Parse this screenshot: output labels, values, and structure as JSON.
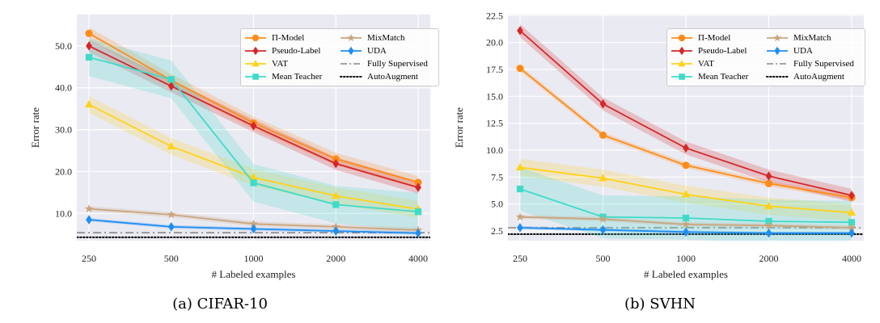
{
  "figures": [
    {
      "id": "panel-a",
      "caption": "(a) CIFAR-10",
      "chart_data": {
        "type": "line",
        "title": "",
        "xlabel": "# Labeled examples",
        "ylabel": "Error rate",
        "x_scale": "log",
        "categories": [
          "250",
          "500",
          "1000",
          "2000",
          "4000"
        ],
        "x": [
          250,
          500,
          1000,
          2000,
          4000
        ],
        "ylim": [
          3.5,
          57.5
        ],
        "yticks": [
          10.0,
          20.0,
          30.0,
          40.0,
          50.0
        ],
        "ytick_labels": [
          "10.0",
          "20.0",
          "30.0",
          "40.0",
          "50.0"
        ],
        "grid": true,
        "legend_position": "top-right",
        "series": [
          {
            "name": "Π-Model",
            "color": "#ff8c1a",
            "marker": "circle",
            "values": [
              53.0,
              41.8,
              31.6,
              23.0,
              17.4
            ],
            "band": 1.5
          },
          {
            "name": "Pseudo-Label",
            "color": "#d62728",
            "marker": "diamond",
            "values": [
              50.0,
              40.4,
              30.9,
              21.9,
              16.2
            ],
            "band": 1.5
          },
          {
            "name": "VAT",
            "color": "#ffd21a",
            "marker": "triangle",
            "values": [
              36.0,
              26.0,
              18.6,
              14.2,
              11.0
            ],
            "band": 2.0
          },
          {
            "name": "Mean Teacher",
            "color": "#3fdbc8",
            "marker": "square",
            "values": [
              47.3,
              42.0,
              17.3,
              12.1,
              10.4
            ],
            "band": 4.5
          },
          {
            "name": "MixMatch",
            "color": "#c9a57e",
            "marker": "star",
            "values": [
              11.1,
              9.7,
              7.5,
              6.8,
              6.0
            ],
            "band": 0.6
          },
          {
            "name": "UDA",
            "color": "#1f8ef1",
            "marker": "diamond",
            "values": [
              8.5,
              6.8,
              6.3,
              5.8,
              5.3
            ],
            "band": 0.4
          }
        ],
        "reference_lines": [
          {
            "name": "Fully Supervised",
            "value": 5.4,
            "color": "#888888",
            "style": "dashdot"
          },
          {
            "name": "AutoAugment",
            "value": 4.3,
            "color": "#000000",
            "style": "dotted"
          }
        ]
      }
    },
    {
      "id": "panel-b",
      "caption": "(b) SVHN",
      "chart_data": {
        "type": "line",
        "title": "",
        "xlabel": "# Labeled examples",
        "ylabel": "Error rate",
        "x_scale": "log",
        "categories": [
          "250",
          "500",
          "1000",
          "2000",
          "4000"
        ],
        "x": [
          250,
          500,
          1000,
          2000,
          4000
        ],
        "ylim": [
          1.6,
          22.6
        ],
        "yticks": [
          2.5,
          5.0,
          7.5,
          10.0,
          12.5,
          15.0,
          17.5,
          20.0,
          22.5
        ],
        "ytick_labels": [
          "2.5",
          "5.0",
          "7.5",
          "10.0",
          "12.5",
          "15.0",
          "17.5",
          "20.0",
          "22.5"
        ],
        "grid": true,
        "legend_position": "top-right",
        "series": [
          {
            "name": "Π-Model",
            "color": "#ff8c1a",
            "marker": "circle",
            "values": [
              17.6,
              11.4,
              8.6,
              6.9,
              5.6
            ],
            "band": 0.25
          },
          {
            "name": "Pseudo-Label",
            "color": "#d62728",
            "marker": "diamond",
            "values": [
              21.1,
              14.3,
              10.2,
              7.6,
              5.8
            ],
            "band": 0.6
          },
          {
            "name": "VAT",
            "color": "#ffd21a",
            "marker": "triangle",
            "values": [
              8.4,
              7.4,
              5.9,
              4.8,
              4.2
            ],
            "band": 0.8
          },
          {
            "name": "Mean Teacher",
            "color": "#3fdbc8",
            "marker": "square",
            "values": [
              6.4,
              3.8,
              3.7,
              3.4,
              3.3
            ],
            "band": 2.0
          },
          {
            "name": "MixMatch",
            "color": "#c9a57e",
            "marker": "star",
            "values": [
              3.8,
              3.6,
              3.1,
              3.0,
              2.8
            ],
            "band": 0.2
          },
          {
            "name": "UDA",
            "color": "#1f8ef1",
            "marker": "diamond",
            "values": [
              2.8,
              2.6,
              2.4,
              2.3,
              2.3
            ],
            "band": 0.15
          }
        ],
        "reference_lines": [
          {
            "name": "Fully Supervised",
            "value": 2.8,
            "color": "#888888",
            "style": "dashdot"
          },
          {
            "name": "AutoAugment",
            "value": 2.2,
            "color": "#000000",
            "style": "dotted"
          }
        ]
      }
    }
  ]
}
